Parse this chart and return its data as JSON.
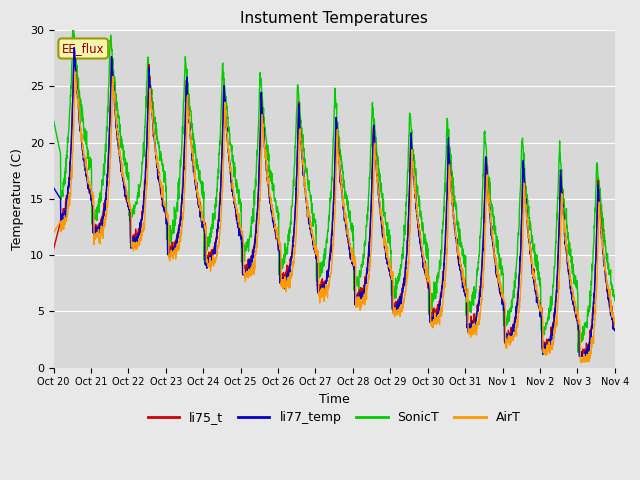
{
  "title": "Instument Temperatures",
  "xlabel": "Time",
  "ylabel": "Temperature (C)",
  "ylim": [
    0,
    30
  ],
  "annotation": "EE_flux",
  "series_labels": [
    "li75_t",
    "li77_temp",
    "SonicT",
    "AirT"
  ],
  "series_colors": [
    "#cc0000",
    "#0000cc",
    "#00cc00",
    "#ff9900"
  ],
  "tick_labels": [
    "Oct 20",
    "Oct 21",
    "Oct 22",
    "Oct 23",
    "Oct 24",
    "Oct 25",
    "Oct 26",
    "Oct 27",
    "Oct 28",
    "Oct 29",
    "Oct 30",
    "Oct 31",
    "Nov 1",
    "Nov 2",
    "Nov 3",
    "Nov 4"
  ],
  "background_color": "#d8d8d8",
  "fig_bg": "#e8e8e8",
  "n_days": 15,
  "points_per_day": 144,
  "title_fontsize": 11,
  "axis_label_fontsize": 9,
  "legend_fontsize": 9
}
